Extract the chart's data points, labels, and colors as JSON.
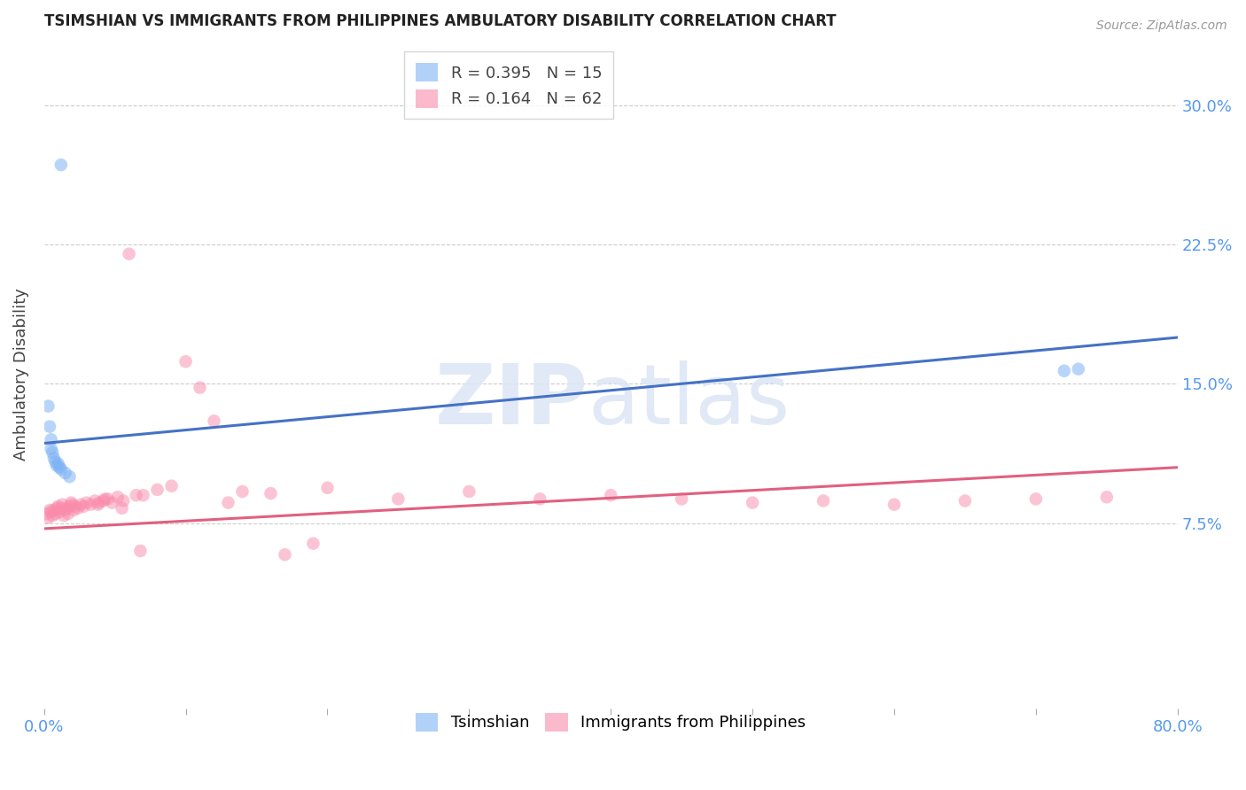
{
  "title": "TSIMSHIAN VS IMMIGRANTS FROM PHILIPPINES AMBULATORY DISABILITY CORRELATION CHART",
  "source": "Source: ZipAtlas.com",
  "ylabel": "Ambulatory Disability",
  "right_yticks": [
    "30.0%",
    "22.5%",
    "15.0%",
    "7.5%"
  ],
  "right_ytick_vals": [
    0.3,
    0.225,
    0.15,
    0.075
  ],
  "xlim": [
    0.0,
    0.8
  ],
  "ylim": [
    -0.025,
    0.335
  ],
  "legend_r1": "R = 0.395",
  "legend_n1": "N = 15",
  "legend_r2": "R = 0.164",
  "legend_n2": "N = 62",
  "blue_color": "#7EB3F5",
  "pink_color": "#F98BAB",
  "line_blue": "#4472C4",
  "line_pink": "#E06080",
  "tsimshian_x": [
    0.003,
    0.004,
    0.005,
    0.005,
    0.006,
    0.007,
    0.008,
    0.009,
    0.01,
    0.011,
    0.012,
    0.015,
    0.018,
    0.72,
    0.73
  ],
  "tsimshian_y": [
    0.138,
    0.127,
    0.12,
    0.115,
    0.113,
    0.11,
    0.108,
    0.106,
    0.107,
    0.105,
    0.104,
    0.102,
    0.1,
    0.157,
    0.158
  ],
  "tsimshian_outlier_x": [
    0.012
  ],
  "tsimshian_outlier_y": [
    0.268
  ],
  "philippines_x": [
    0.002,
    0.003,
    0.004,
    0.005,
    0.006,
    0.007,
    0.008,
    0.009,
    0.01,
    0.011,
    0.012,
    0.013,
    0.014,
    0.015,
    0.016,
    0.017,
    0.018,
    0.019,
    0.02,
    0.021,
    0.022,
    0.024,
    0.026,
    0.028,
    0.03,
    0.033,
    0.036,
    0.039,
    0.042,
    0.045,
    0.048,
    0.052,
    0.056,
    0.06,
    0.065,
    0.07,
    0.08,
    0.09,
    0.1,
    0.12,
    0.14,
    0.16,
    0.2,
    0.25,
    0.3,
    0.35,
    0.4,
    0.45,
    0.5,
    0.55,
    0.6,
    0.65,
    0.7,
    0.75,
    0.038,
    0.043,
    0.055,
    0.068,
    0.11,
    0.13,
    0.17,
    0.19
  ],
  "philippines_y": [
    0.08,
    0.078,
    0.082,
    0.081,
    0.079,
    0.082,
    0.08,
    0.083,
    0.084,
    0.081,
    0.083,
    0.085,
    0.079,
    0.082,
    0.083,
    0.08,
    0.084,
    0.086,
    0.085,
    0.082,
    0.084,
    0.083,
    0.085,
    0.084,
    0.086,
    0.085,
    0.087,
    0.086,
    0.087,
    0.088,
    0.086,
    0.089,
    0.087,
    0.22,
    0.09,
    0.09,
    0.093,
    0.095,
    0.162,
    0.13,
    0.092,
    0.091,
    0.094,
    0.088,
    0.092,
    0.088,
    0.09,
    0.088,
    0.086,
    0.087,
    0.085,
    0.087,
    0.088,
    0.089,
    0.085,
    0.088,
    0.083,
    0.06,
    0.148,
    0.086,
    0.058,
    0.064
  ],
  "blue_line_x": [
    0.0,
    0.8
  ],
  "blue_line_y": [
    0.118,
    0.175
  ],
  "pink_line_x": [
    0.0,
    0.8
  ],
  "pink_line_y": [
    0.072,
    0.105
  ]
}
